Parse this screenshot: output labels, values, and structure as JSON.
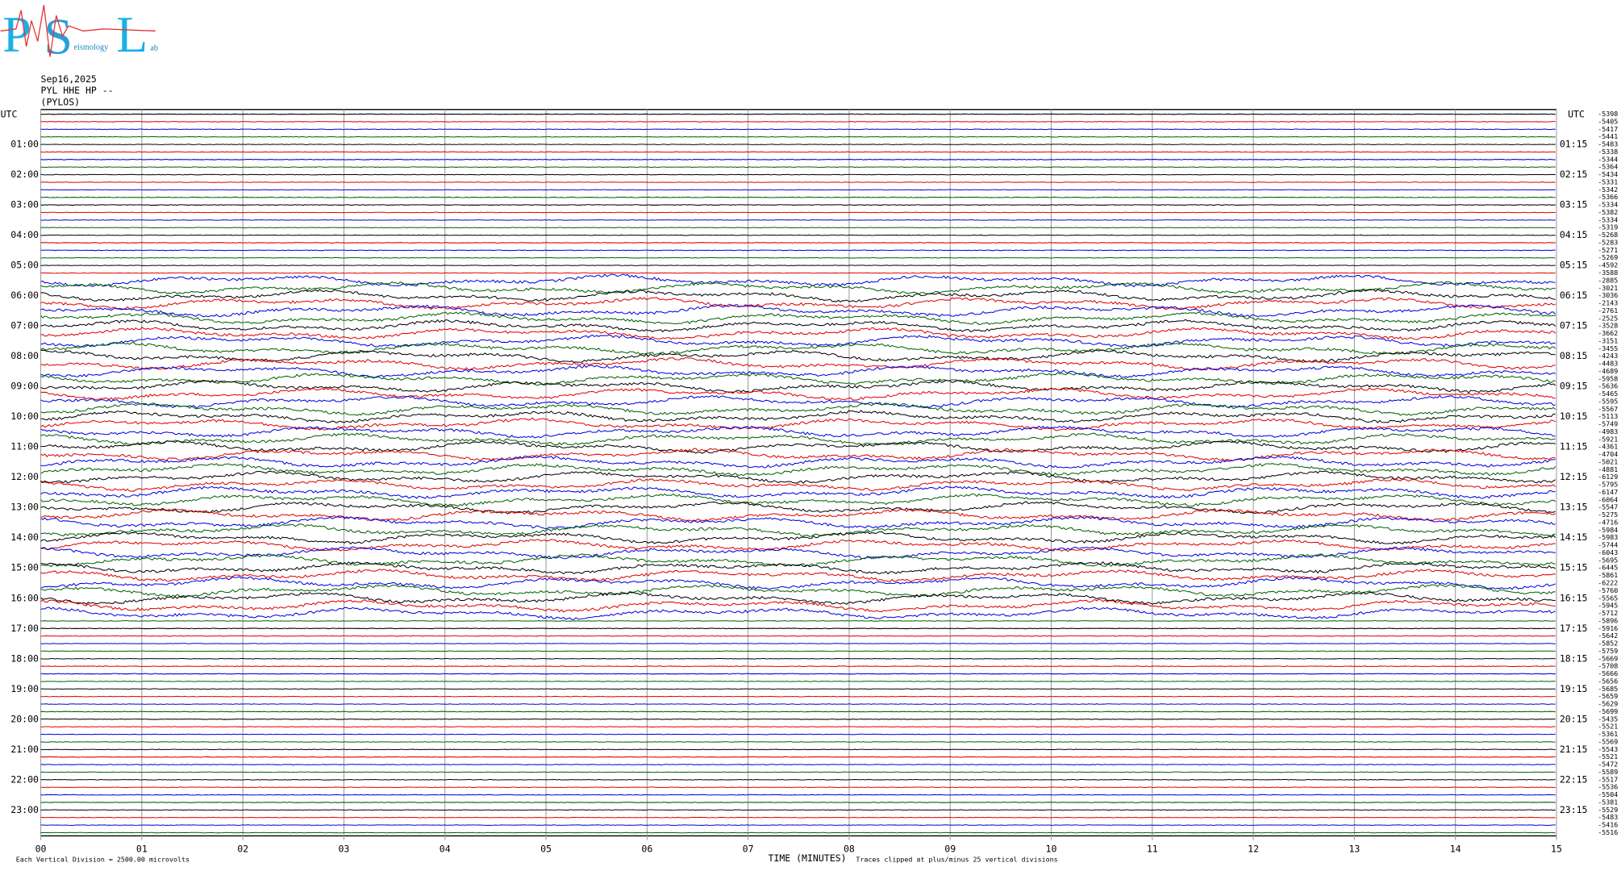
{
  "logo": {
    "letters": [
      "P",
      "S",
      "L"
    ],
    "caption": "eismology",
    "suffix": "ab"
  },
  "header": {
    "date": "Sep16,2025",
    "station": "PYL HHE HP --",
    "location": "(PYLOS)"
  },
  "left_axis": {
    "title": "UTC",
    "labels": [
      "01:00",
      "02:00",
      "03:00",
      "04:00",
      "05:00",
      "06:00",
      "07:00",
      "08:00",
      "09:00",
      "10:00",
      "11:00",
      "12:00",
      "13:00",
      "14:00",
      "15:00",
      "16:00",
      "17:00",
      "18:00",
      "19:00",
      "20:00",
      "21:00",
      "22:00",
      "23:00"
    ]
  },
  "right_axis": {
    "title": "UTC",
    "labels": [
      "01:15",
      "02:15",
      "03:15",
      "04:15",
      "05:15",
      "06:15",
      "07:15",
      "08:15",
      "09:15",
      "10:15",
      "11:15",
      "12:15",
      "13:15",
      "14:15",
      "15:15",
      "16:15",
      "17:15",
      "18:15",
      "19:15",
      "20:15",
      "21:15",
      "22:15",
      "23:15"
    ]
  },
  "trace_offsets": [
    -5398,
    -5405,
    -5417,
    -5441,
    -5483,
    -5338,
    -5344,
    -5364,
    -5434,
    -5331,
    -5342,
    -5366,
    -5334,
    -5382,
    -5334,
    -5319,
    -5268,
    -5283,
    -5271,
    -5269,
    -4592,
    -3588,
    -2885,
    -3021,
    -3036,
    -2143,
    -2761,
    -2525,
    -3528,
    -3662,
    -3151,
    -3455,
    -4243,
    -4483,
    -4689,
    -5958,
    -5636,
    -5465,
    -5595,
    -5567,
    -5113,
    -5749,
    -4983,
    -5921,
    -4361,
    -4704,
    -5021,
    -4881,
    -6129,
    -5795,
    -6147,
    -6064,
    -5547,
    -5275,
    -4716,
    -5984,
    -5983,
    -5744,
    -6043,
    -5695,
    -6445,
    -5861,
    -6222,
    -5760,
    -5565,
    -5945,
    -5712,
    -5896,
    -5916,
    -5642,
    -5852,
    -5759,
    -5669,
    -5708,
    -5666,
    -5656,
    -5685,
    -5659,
    -5629,
    -5699,
    -5435,
    -5521,
    -5361,
    -5569,
    -5543,
    -5521,
    -5472,
    -5589,
    -5517,
    -5536,
    -5504,
    -5381,
    -5529,
    -5483,
    -5416,
    -5516
  ],
  "x_axis": {
    "labels": [
      "00",
      "01",
      "02",
      "03",
      "04",
      "05",
      "06",
      "07",
      "08",
      "09",
      "10",
      "11",
      "12",
      "13",
      "14",
      "15"
    ],
    "title": "TIME (MINUTES)"
  },
  "footer": {
    "scale": "Each Vertical Division = 2500.00 microvolts",
    "clip": "Traces clipped at plus/minus 25 vertical divisions"
  }
}
